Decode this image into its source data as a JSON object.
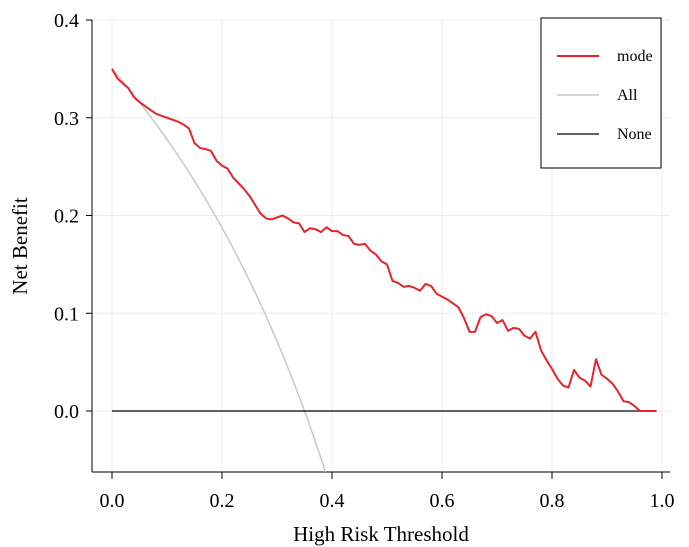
{
  "chart_data": {
    "type": "line",
    "xlabel": "High Risk Threshold",
    "ylabel": "Net Benefit",
    "xlim": [
      0.0,
      1.0
    ],
    "ylim": [
      -0.065,
      0.4
    ],
    "x_ticks": [
      "0.0",
      "0.2",
      "0.4",
      "0.6",
      "0.8",
      "1.0"
    ],
    "y_ticks": [
      "0.0",
      "0.1",
      "0.2",
      "0.3",
      "0.4"
    ],
    "grid": true,
    "legend_position": "top-right",
    "series": [
      {
        "name": "mode",
        "color": "#e8242b",
        "x": [
          0.0,
          0.01,
          0.02,
          0.03,
          0.04,
          0.05,
          0.06,
          0.07,
          0.08,
          0.09,
          0.1,
          0.11,
          0.12,
          0.13,
          0.14,
          0.15,
          0.16,
          0.17,
          0.18,
          0.19,
          0.2,
          0.21,
          0.22,
          0.23,
          0.24,
          0.25,
          0.26,
          0.27,
          0.28,
          0.29,
          0.3,
          0.31,
          0.32,
          0.33,
          0.34,
          0.35,
          0.36,
          0.37,
          0.38,
          0.39,
          0.4,
          0.41,
          0.42,
          0.43,
          0.44,
          0.45,
          0.46,
          0.47,
          0.48,
          0.49,
          0.5,
          0.51,
          0.52,
          0.53,
          0.54,
          0.55,
          0.56,
          0.57,
          0.58,
          0.59,
          0.6,
          0.61,
          0.62,
          0.63,
          0.64,
          0.65,
          0.66,
          0.67,
          0.68,
          0.69,
          0.7,
          0.71,
          0.72,
          0.73,
          0.74,
          0.75,
          0.76,
          0.77,
          0.78,
          0.79,
          0.8,
          0.81,
          0.82,
          0.83,
          0.84,
          0.85,
          0.86,
          0.87,
          0.88,
          0.89,
          0.9,
          0.91,
          0.92,
          0.93,
          0.94,
          0.95,
          0.96,
          0.97,
          0.98,
          0.99
        ],
        "y": [
          0.35,
          0.34,
          0.335,
          0.33,
          0.321,
          0.316,
          0.312,
          0.308,
          0.304,
          0.302,
          0.3,
          0.298,
          0.296,
          0.293,
          0.289,
          0.274,
          0.269,
          0.268,
          0.266,
          0.256,
          0.251,
          0.248,
          0.239,
          0.233,
          0.227,
          0.22,
          0.211,
          0.202,
          0.197,
          0.196,
          0.198,
          0.2,
          0.197,
          0.193,
          0.192,
          0.183,
          0.187,
          0.186,
          0.183,
          0.188,
          0.184,
          0.184,
          0.18,
          0.179,
          0.171,
          0.17,
          0.171,
          0.164,
          0.16,
          0.153,
          0.15,
          0.133,
          0.131,
          0.127,
          0.128,
          0.126,
          0.123,
          0.13,
          0.128,
          0.12,
          0.117,
          0.114,
          0.11,
          0.106,
          0.095,
          0.081,
          0.081,
          0.096,
          0.099,
          0.097,
          0.09,
          0.093,
          0.082,
          0.085,
          0.084,
          0.077,
          0.074,
          0.081,
          0.062,
          0.052,
          0.043,
          0.033,
          0.026,
          0.024,
          0.042,
          0.034,
          0.031,
          0.025,
          0.053,
          0.037,
          0.033,
          0.028,
          0.02,
          0.01,
          0.009,
          0.005,
          0.0,
          0.0,
          0.0,
          0.0
        ]
      },
      {
        "name": "All",
        "color": "#c8c8c8",
        "prevalence": 0.35
      },
      {
        "name": "None",
        "color": "#000000",
        "x": [
          0.0,
          0.99
        ],
        "y": [
          0.0,
          0.0
        ]
      }
    ]
  }
}
